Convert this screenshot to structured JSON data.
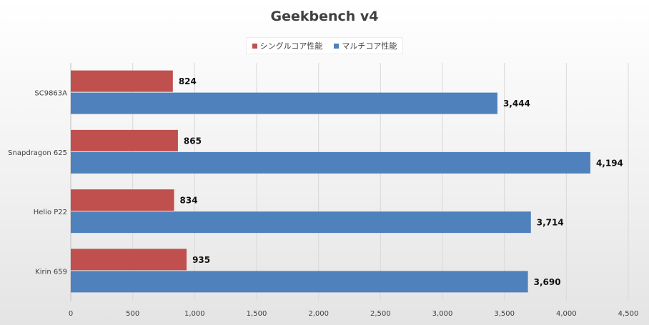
{
  "chart_data": {
    "type": "bar",
    "orientation": "horizontal",
    "title": "Geekbench v4",
    "categories": [
      "SC9863A",
      "Snapdragon 625",
      "Helio P22",
      "Kirin 659"
    ],
    "series": [
      {
        "name": "シングルコア性能",
        "color": "#c0504d",
        "values": [
          824,
          865,
          834,
          935
        ],
        "labels": [
          "824",
          "865",
          "834",
          "935"
        ]
      },
      {
        "name": "マルチコア性能",
        "color": "#4f81bd",
        "values": [
          3444,
          4194,
          3714,
          3690
        ],
        "labels": [
          "3,444",
          "4,194",
          "3,714",
          "3,690"
        ]
      }
    ],
    "xlim": [
      0,
      4500
    ],
    "xticks": [
      0,
      500,
      1000,
      1500,
      2000,
      2500,
      3000,
      3500,
      4000,
      4500
    ],
    "xtick_labels": [
      "0",
      "500",
      "1,000",
      "1,500",
      "2,000",
      "2,500",
      "3,000",
      "3,500",
      "4,000",
      "4,500"
    ],
    "grid": "vertical",
    "legend_position": "top"
  }
}
